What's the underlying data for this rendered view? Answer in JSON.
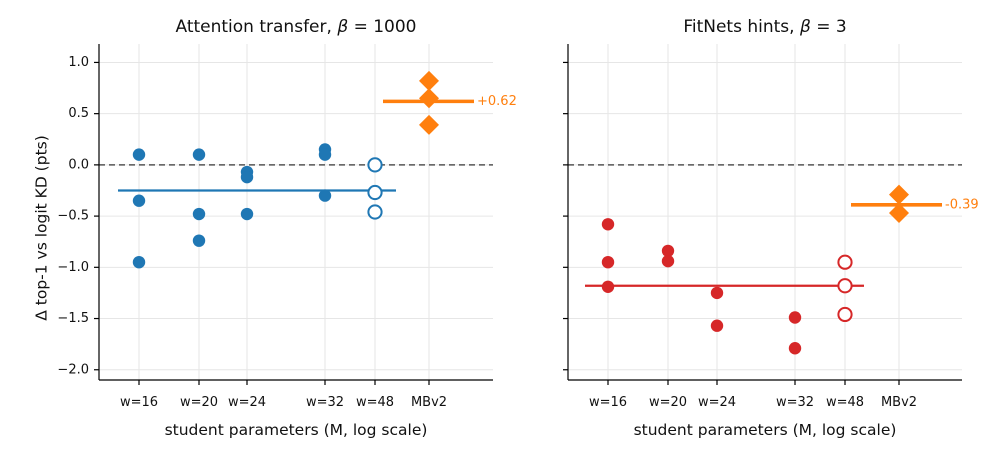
{
  "figure": {
    "ylabel": "Δ top-1 vs logit KD (pts)"
  },
  "chart_data": [
    {
      "type": "scatter",
      "title_text": "Attention transfer, ",
      "title_beta": "β",
      "title_value": " = 1000",
      "xlabel": "student parameters (M, log scale)",
      "ylabel": "Δ top-1 vs logit KD (pts)",
      "ylim": [
        -2.1,
        1.18
      ],
      "y_ticks": [
        "1.0",
        "0.5",
        "0.0",
        "−0.5",
        "−1.0",
        "−1.5",
        "−2.0"
      ],
      "y_tick_values": [
        1.0,
        0.5,
        0.0,
        -0.5,
        -1.0,
        -1.5,
        -2.0
      ],
      "x_scale": "log",
      "grid": true,
      "reference_line": {
        "y": 0.0,
        "style": "dashed"
      },
      "categories": [
        "w=16",
        "w=20",
        "w=24",
        "w=32",
        "w=48",
        "MBv2"
      ],
      "series": [
        {
          "category": "w=16",
          "marker": "filled-circle",
          "color": "#1f77b4",
          "values": [
            0.1,
            -0.35,
            -0.95
          ]
        },
        {
          "category": "w=20",
          "marker": "filled-circle",
          "color": "#1f77b4",
          "values": [
            0.1,
            -0.48,
            -0.74
          ]
        },
        {
          "category": "w=24",
          "marker": "filled-circle",
          "color": "#1f77b4",
          "values": [
            -0.07,
            -0.12,
            -0.48
          ]
        },
        {
          "category": "w=32",
          "marker": "filled-circle",
          "color": "#1f77b4",
          "values": [
            0.15,
            0.1,
            -0.3
          ]
        },
        {
          "category": "w=48",
          "marker": "open-circle",
          "color": "#1f77b4",
          "values": [
            0.0,
            -0.27,
            -0.46
          ]
        },
        {
          "category": "MBv2",
          "marker": "diamond",
          "color": "#ff7f0e",
          "values": [
            0.82,
            0.65,
            0.39
          ]
        }
      ],
      "mean_lines": [
        {
          "value": -0.25,
          "from": "w=16",
          "to": "w=48",
          "color": "#1f77b4"
        },
        {
          "value": 0.62,
          "category": "MBv2",
          "color": "#ff7f0e",
          "label": "+0.62"
        }
      ]
    },
    {
      "type": "scatter",
      "title_text": "FitNets hints, ",
      "title_beta": "β",
      "title_value": " = 3",
      "xlabel": "student parameters (M, log scale)",
      "ylabel": "",
      "ylim": [
        -2.1,
        1.18
      ],
      "y_ticks": [],
      "y_tick_values": [
        1.0,
        0.5,
        0.0,
        -0.5,
        -1.0,
        -1.5,
        -2.0
      ],
      "x_scale": "log",
      "grid": true,
      "reference_line": {
        "y": 0.0,
        "style": "dashed"
      },
      "categories": [
        "w=16",
        "w=20",
        "w=24",
        "w=32",
        "w=48",
        "MBv2"
      ],
      "series": [
        {
          "category": "w=16",
          "marker": "filled-circle",
          "color": "#d62728",
          "values": [
            -0.58,
            -0.95,
            -1.19
          ]
        },
        {
          "category": "w=20",
          "marker": "filled-circle",
          "color": "#d62728",
          "values": [
            -0.84,
            -0.94
          ]
        },
        {
          "category": "w=24",
          "marker": "filled-circle",
          "color": "#d62728",
          "values": [
            -1.25,
            -1.57
          ]
        },
        {
          "category": "w=32",
          "marker": "filled-circle",
          "color": "#d62728",
          "values": [
            -1.49,
            -1.79
          ]
        },
        {
          "category": "w=48",
          "marker": "open-circle",
          "color": "#d62728",
          "values": [
            -0.95,
            -1.18,
            -1.46
          ]
        },
        {
          "category": "MBv2",
          "marker": "diamond",
          "color": "#ff7f0e",
          "values": [
            -0.29,
            -0.47
          ]
        }
      ],
      "mean_lines": [
        {
          "value": -1.18,
          "from": "w=16",
          "to": "w=48",
          "color": "#d62728"
        },
        {
          "value": -0.39,
          "category": "MBv2",
          "color": "#ff7f0e",
          "label": "-0.39"
        }
      ]
    }
  ]
}
